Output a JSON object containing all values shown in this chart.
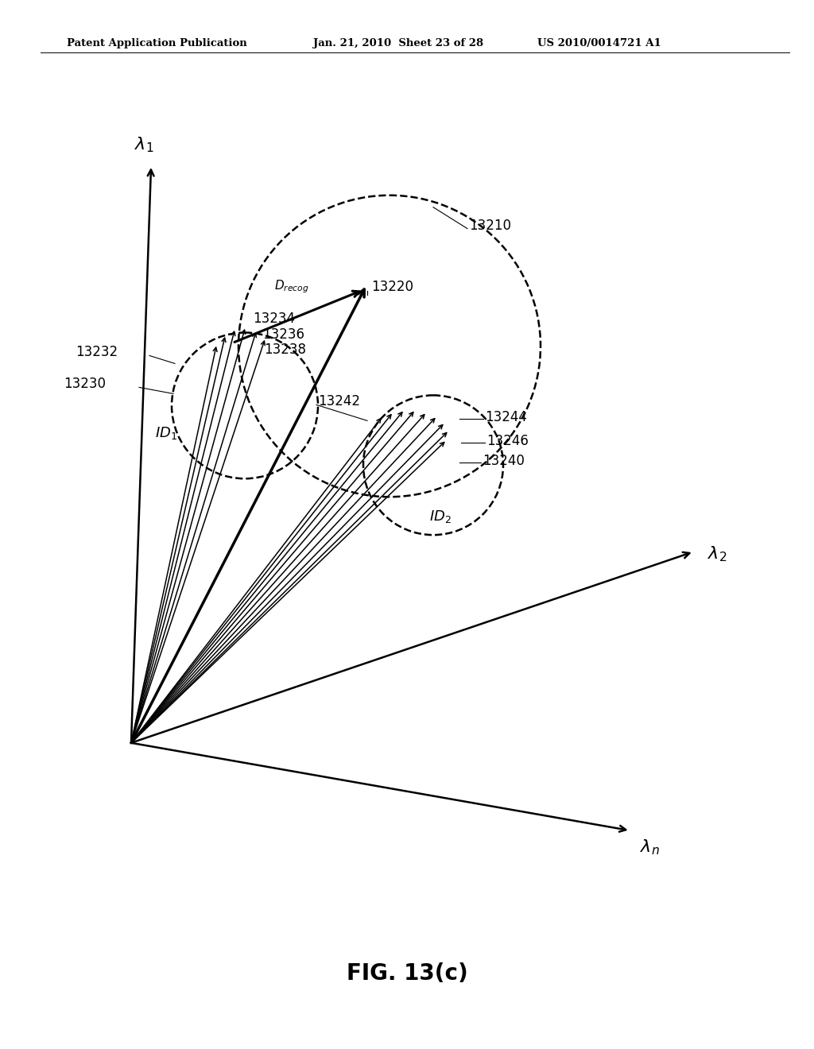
{
  "bg_color": "#ffffff",
  "header_left": "Patent Application Publication",
  "header_mid": "Jan. 21, 2010  Sheet 23 of 28",
  "header_right": "US 2010/0014721 A1",
  "fig_label": "FIG. 13(c)"
}
